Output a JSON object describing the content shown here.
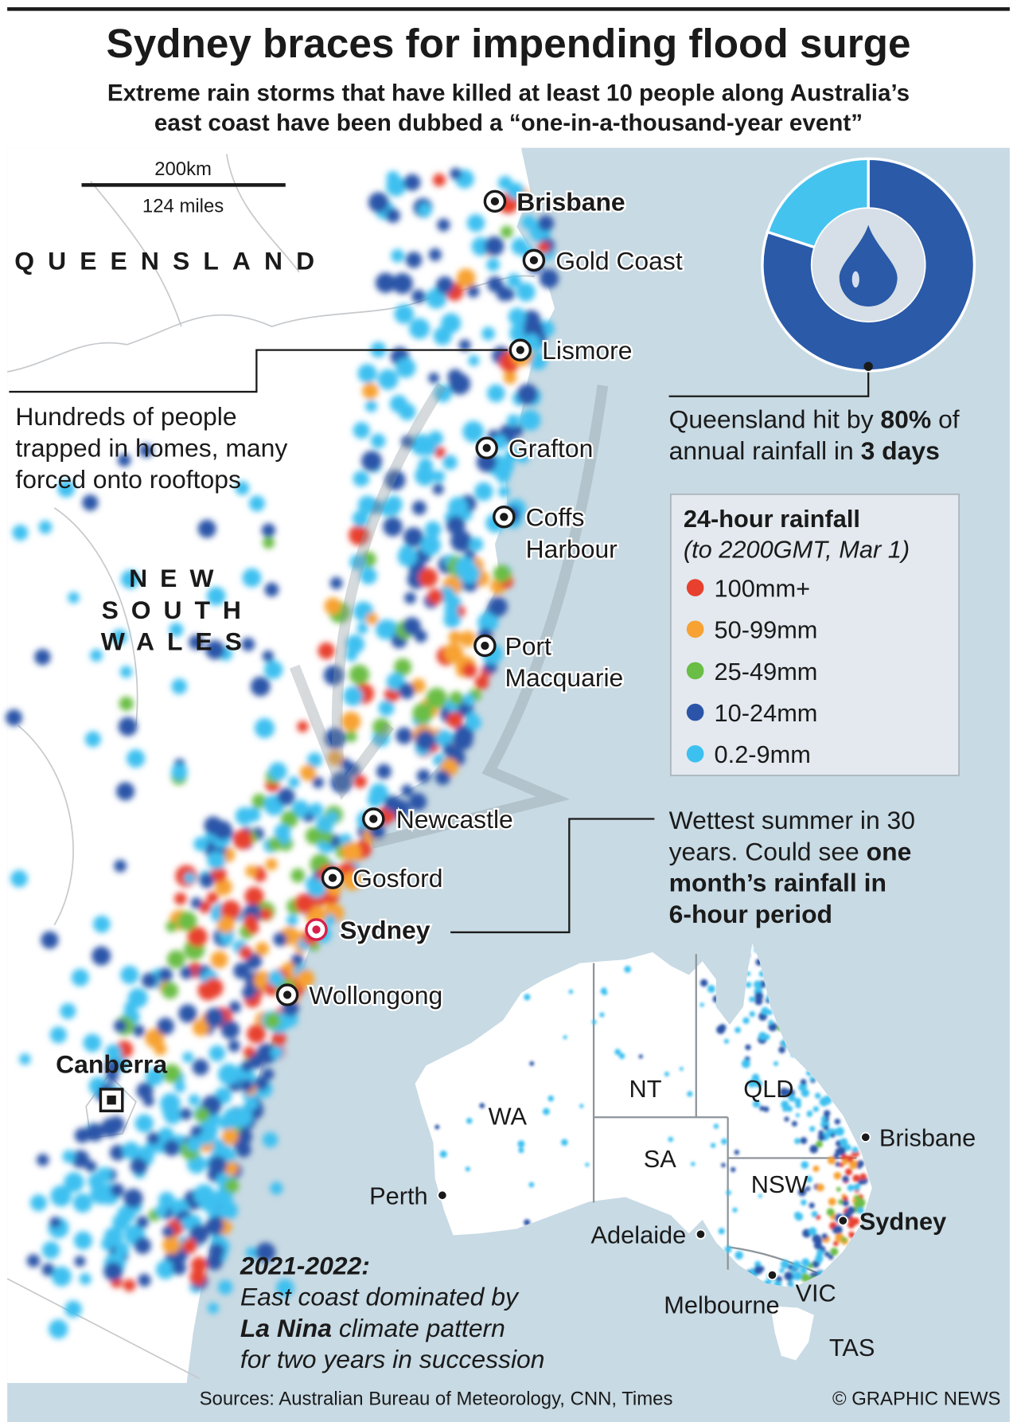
{
  "header": {
    "title": "Sydney braces for impending flood surge",
    "subtitle": [
      "Extreme rain storms that have killed at least 10 people along Australia’s",
      "east coast have been dubbed a “one-in-a-thousand-year event”"
    ]
  },
  "scale": {
    "km": "200km",
    "miles": "124 miles"
  },
  "regions": {
    "queensland": "QUEENSLAND",
    "nsw": [
      "NEW",
      "SOUTH",
      "WALES"
    ]
  },
  "cities": [
    {
      "lines": [
        "Brisbane"
      ],
      "bold": true
    },
    {
      "lines": [
        "Gold Coast"
      ]
    },
    {
      "lines": [
        "Lismore"
      ]
    },
    {
      "lines": [
        "Grafton"
      ]
    },
    {
      "lines": [
        "Coffs",
        "Harbour"
      ]
    },
    {
      "lines": [
        "Port",
        "Macquarie"
      ]
    },
    {
      "lines": [
        "Newcastle"
      ]
    },
    {
      "lines": [
        "Gosford"
      ]
    },
    {
      "lines": [
        "Sydney"
      ],
      "bold": true,
      "highlight": "#d6204b"
    },
    {
      "lines": [
        "Wollongong"
      ]
    }
  ],
  "capital": {
    "label": "Canberra"
  },
  "annotations": {
    "trapped": {
      "lines": [
        [
          {
            "text": "Hundreds of people"
          }
        ],
        [
          {
            "text": "trapped in homes, many"
          }
        ],
        [
          {
            "text": "forced onto rooftops"
          }
        ]
      ]
    },
    "queensland": {
      "lines": [
        [
          {
            "text": "Queensland hit by "
          },
          {
            "text": "80%",
            "bold": true
          },
          {
            "text": " of"
          }
        ],
        [
          {
            "text": "annual rainfall in "
          },
          {
            "text": "3 days",
            "bold": true
          }
        ]
      ]
    },
    "summer": {
      "lines": [
        [
          {
            "text": "Wettest summer in 30"
          }
        ],
        [
          {
            "text": "years. Could see "
          },
          {
            "text": "one",
            "bold": true
          }
        ],
        [
          {
            "text": "month’s rainfall in",
            "bold": true
          }
        ],
        [
          {
            "text": "6-hour period",
            "bold": true
          }
        ]
      ]
    },
    "lanina": {
      "lines": [
        [
          {
            "text": "2021-2022:",
            "bold": true
          }
        ],
        [
          {
            "text": "East coast dominated by"
          }
        ],
        [
          {
            "text": "La Nina",
            "bold": true
          },
          {
            "text": " climate pattern"
          }
        ],
        [
          {
            "text": "for two years in succession"
          }
        ]
      ]
    }
  },
  "donut": {
    "value": 80,
    "colors": [
      "#2a5aa8",
      "#45c3ef"
    ]
  },
  "legend": {
    "title": "24-hour rainfall",
    "subtitle": "(to 2200GMT, Mar 1)",
    "items": [
      {
        "label": "100mm+",
        "color": "#e8402e"
      },
      {
        "label": "50-99mm",
        "color": "#f7a233"
      },
      {
        "label": "25-49mm",
        "color": "#6abd45"
      },
      {
        "label": "10-24mm",
        "color": "#2b54a8"
      },
      {
        "label": "0.2-9mm",
        "color": "#3cc0f0"
      }
    ]
  },
  "inset": {
    "states": [
      "WA",
      "NT",
      "QLD",
      "SA",
      "NSW",
      "VIC",
      "TAS"
    ],
    "cities": [
      {
        "label": "Perth"
      },
      {
        "label": "Adelaide"
      },
      {
        "label": "Melbourne"
      },
      {
        "label": "Brisbane"
      },
      {
        "label": "Sydney",
        "bold": true
      }
    ]
  },
  "footer": {
    "sources": "Sources: Australian Bureau of Meteorology, CNN, Times",
    "credit": "© GRAPHIC NEWS"
  }
}
